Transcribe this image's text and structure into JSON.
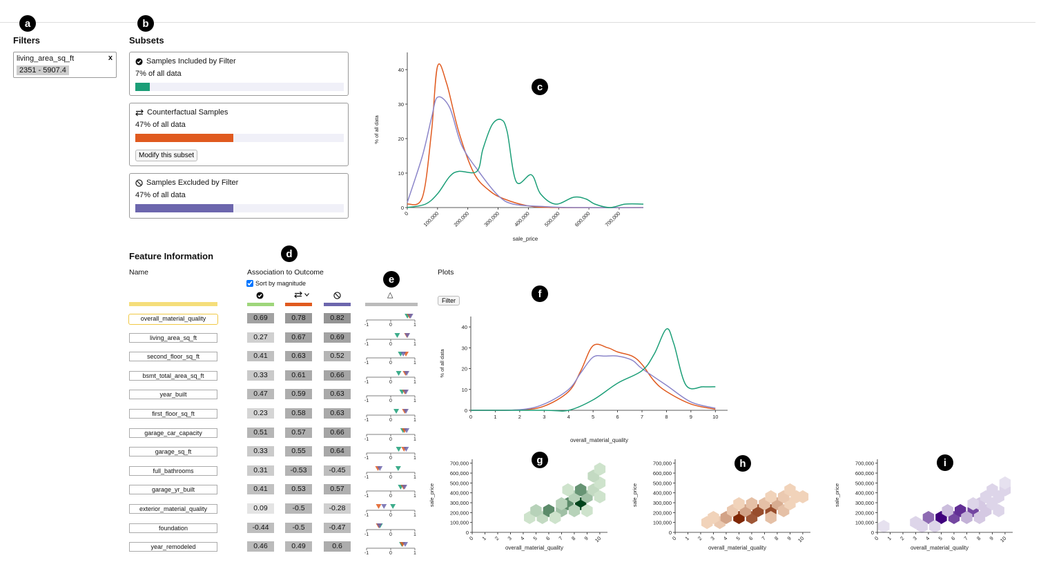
{
  "markers": {
    "a": "a",
    "b": "b",
    "c": "c",
    "d": "d",
    "e": "e",
    "f": "f",
    "g": "g",
    "h": "h",
    "i": "i"
  },
  "filters": {
    "heading": "Filters",
    "item": {
      "name": "living_area_sq_ft",
      "range": "2351 - 5907.4",
      "remove": "x"
    }
  },
  "subsets": {
    "heading": "Subsets",
    "included": {
      "title": "Samples Included by Filter",
      "pct_text": "7% of all data",
      "fraction": 0.07,
      "color": "#1b9e77"
    },
    "counterfactual": {
      "title": "Counterfactual Samples",
      "pct_text": "47% of all data",
      "fraction": 0.47,
      "color": "#e05a1f",
      "button": "Modify this subset"
    },
    "excluded": {
      "title": "Samples Excluded by Filter",
      "pct_text": "47% of all data",
      "fraction": 0.47,
      "color": "#6c66ad"
    }
  },
  "feature_info": {
    "heading": "Feature Information",
    "name_label": "Name",
    "assoc_label": "Association to Outcome",
    "sort_label": "Sort by magnitude",
    "sort_checked": true,
    "plots_label": "Plots",
    "filter_button": "Filter",
    "column_colors": [
      "#9ed67b",
      "#e05a1f",
      "#6c66ad",
      "#bbbbbb"
    ],
    "delta_symbol": "△",
    "features": [
      {
        "name": "overall_material_quality",
        "v": [
          "0.69",
          "0.78",
          "0.82"
        ]
      },
      {
        "name": "living_area_sq_ft",
        "v": [
          "0.27",
          "0.67",
          "0.69"
        ]
      },
      {
        "name": "second_floor_sq_ft",
        "v": [
          "0.41",
          "0.63",
          "0.52"
        ]
      },
      {
        "name": "bsmt_total_area_sq_ft",
        "v": [
          "0.33",
          "0.61",
          "0.66"
        ]
      },
      {
        "name": "year_built",
        "v": [
          "0.47",
          "0.59",
          "0.63"
        ]
      },
      {
        "name": "first_floor_sq_ft",
        "v": [
          "0.23",
          "0.58",
          "0.63"
        ]
      },
      {
        "name": "garage_car_capacity",
        "v": [
          "0.51",
          "0.57",
          "0.66"
        ]
      },
      {
        "name": "garage_sq_ft",
        "v": [
          "0.33",
          "0.55",
          "0.64"
        ]
      },
      {
        "name": "full_bathrooms",
        "v": [
          "0.31",
          "-0.53",
          "-0.45"
        ]
      },
      {
        "name": "garage_yr_built",
        "v": [
          "0.41",
          "0.53",
          "0.57"
        ]
      },
      {
        "name": "exterior_material_quality",
        "v": [
          "0.09",
          "-0.5",
          "-0.28"
        ]
      },
      {
        "name": "foundation",
        "v": [
          "-0.44",
          "-0.5",
          "-0.47"
        ]
      },
      {
        "name": "year_remodeled",
        "v": [
          "0.46",
          "0.49",
          "0.6"
        ]
      }
    ],
    "tick_labels": [
      "-1",
      "0",
      "1"
    ]
  },
  "chart_data": [
    {
      "type": "line",
      "xlabel": "sale_price",
      "ylabel": "% of all data",
      "xlim": [
        0,
        780000
      ],
      "ylim": [
        0,
        45
      ],
      "x_ticks": [
        "0",
        "100,000",
        "200,000",
        "300,000",
        "400,000",
        "500,000",
        "600,000",
        "700,000"
      ],
      "y_ticks": [
        "0",
        "10",
        "20",
        "30",
        "40"
      ],
      "series": [
        {
          "color": "#e05a1f",
          "points": [
            [
              0,
              1
            ],
            [
              50000,
              3
            ],
            [
              80000,
              22
            ],
            [
              100000,
              41
            ],
            [
              130000,
              36
            ],
            [
              170000,
              22
            ],
            [
              220000,
              10
            ],
            [
              270000,
              5
            ],
            [
              320000,
              2.5
            ],
            [
              400000,
              0.5
            ],
            [
              500000,
              0
            ],
            [
              780000,
              0
            ]
          ]
        },
        {
          "color": "#8b85c9",
          "points": [
            [
              0,
              1.5
            ],
            [
              50000,
              15
            ],
            [
              80000,
              26
            ],
            [
              100000,
              32
            ],
            [
              140000,
              29
            ],
            [
              180000,
              18
            ],
            [
              240000,
              10
            ],
            [
              300000,
              3.5
            ],
            [
              350000,
              1
            ],
            [
              450000,
              0.3
            ],
            [
              550000,
              0
            ],
            [
              780000,
              0
            ]
          ]
        },
        {
          "color": "#1b9e77",
          "points": [
            [
              0,
              0
            ],
            [
              60000,
              1
            ],
            [
              100000,
              4
            ],
            [
              140000,
              9
            ],
            [
              170000,
              10.5
            ],
            [
              230000,
              10.5
            ],
            [
              250000,
              17
            ],
            [
              280000,
              24
            ],
            [
              310000,
              25.5
            ],
            [
              330000,
              22
            ],
            [
              360000,
              7.5
            ],
            [
              410000,
              9.5
            ],
            [
              440000,
              4
            ],
            [
              490000,
              1
            ],
            [
              550000,
              3
            ],
            [
              590000,
              2.5
            ],
            [
              620000,
              1
            ],
            [
              670000,
              0
            ],
            [
              720000,
              1
            ],
            [
              780000,
              1
            ]
          ]
        }
      ]
    },
    {
      "type": "line",
      "xlabel": "overall_material_quality",
      "ylabel": "% of all data",
      "xlim": [
        0,
        10.5
      ],
      "ylim": [
        0,
        45
      ],
      "x_ticks": [
        "0",
        "1",
        "2",
        "3",
        "4",
        "5",
        "6",
        "7",
        "8",
        "9",
        "10"
      ],
      "y_ticks": [
        "0",
        "10",
        "20",
        "30",
        "40"
      ],
      "series": [
        {
          "color": "#e05a1f",
          "points": [
            [
              0,
              0
            ],
            [
              2,
              0.2
            ],
            [
              3,
              2
            ],
            [
              4,
              9
            ],
            [
              4.5,
              19
            ],
            [
              5,
              31
            ],
            [
              5.6,
              30
            ],
            [
              6,
              28
            ],
            [
              6.6,
              26
            ],
            [
              7,
              22
            ],
            [
              7.5,
              14
            ],
            [
              8,
              9
            ],
            [
              9,
              3
            ],
            [
              10,
              0.5
            ]
          ]
        },
        {
          "color": "#8b85c9",
          "points": [
            [
              0,
              0
            ],
            [
              2,
              0.3
            ],
            [
              3,
              3
            ],
            [
              4,
              10
            ],
            [
              4.5,
              18
            ],
            [
              5,
              25.5
            ],
            [
              5.5,
              26
            ],
            [
              6,
              26
            ],
            [
              6.6,
              24
            ],
            [
              7,
              20
            ],
            [
              8,
              12
            ],
            [
              9,
              4
            ],
            [
              10,
              1
            ]
          ]
        },
        {
          "color": "#1b9e77",
          "points": [
            [
              0,
              0
            ],
            [
              3,
              0
            ],
            [
              4,
              0
            ],
            [
              5,
              5
            ],
            [
              6,
              13
            ],
            [
              7,
              19
            ],
            [
              7.5,
              27
            ],
            [
              8,
              39
            ],
            [
              8.3,
              32
            ],
            [
              8.8,
              12
            ],
            [
              9.5,
              11.3
            ],
            [
              10,
              11.3
            ]
          ]
        }
      ]
    },
    {
      "type": "heatmap",
      "xlabel": "overall_material_quality",
      "ylabel": "sale_price",
      "color": "green",
      "x_ticks": [
        "0",
        "1",
        "2",
        "3",
        "4",
        "5",
        "6",
        "7",
        "8",
        "9",
        "10"
      ],
      "y_ticks": [
        "0",
        "100,000",
        "200,000",
        "300,000",
        "400,000",
        "500,000",
        "600,000",
        "700,000"
      ],
      "cells": [
        [
          4.5,
          150000,
          0.1
        ],
        [
          5.5,
          150000,
          0.15
        ],
        [
          6,
          220000,
          0.6
        ],
        [
          5,
          220000,
          0.2
        ],
        [
          7,
          220000,
          0.3
        ],
        [
          6.5,
          150000,
          0.1
        ],
        [
          7.5,
          290000,
          0.6
        ],
        [
          8.5,
          290000,
          1
        ],
        [
          8,
          220000,
          0.2
        ],
        [
          9,
          220000,
          0.1
        ],
        [
          9,
          360000,
          0.3
        ],
        [
          8,
          360000,
          0.2
        ],
        [
          7,
          290000,
          0.2
        ],
        [
          9.5,
          430000,
          0.15
        ],
        [
          8.5,
          430000,
          0.55
        ],
        [
          10,
          500000,
          0.1
        ],
        [
          9.5,
          570000,
          0.15
        ],
        [
          10,
          640000,
          0.1
        ],
        [
          10,
          360000,
          0.1
        ],
        [
          7.5,
          430000,
          0.1
        ]
      ]
    },
    {
      "type": "heatmap",
      "xlabel": "overall_material_quality",
      "ylabel": "sale_price",
      "color": "orange",
      "x_ticks": [
        "0",
        "1",
        "2",
        "3",
        "4",
        "5",
        "6",
        "7",
        "8",
        "9",
        "10"
      ],
      "y_ticks": [
        "0",
        "100,000",
        "200,000",
        "300,000",
        "400,000",
        "500,000",
        "600,000",
        "700,000"
      ],
      "cells": [
        [
          2.5,
          100000,
          0.1
        ],
        [
          3.5,
          100000,
          0.15
        ],
        [
          3,
          150000,
          0.1
        ],
        [
          4,
          150000,
          0.35
        ],
        [
          5,
          150000,
          1
        ],
        [
          6,
          150000,
          0.75
        ],
        [
          4.5,
          220000,
          0.15
        ],
        [
          5.5,
          220000,
          0.35
        ],
        [
          6.5,
          220000,
          0.8
        ],
        [
          7.5,
          220000,
          0.8
        ],
        [
          5,
          290000,
          0.1
        ],
        [
          6,
          290000,
          0.2
        ],
        [
          7,
          290000,
          0.2
        ],
        [
          8,
          290000,
          0.3
        ],
        [
          7.5,
          150000,
          0.2
        ],
        [
          8.5,
          220000,
          0.2
        ],
        [
          9,
          290000,
          0.1
        ],
        [
          8.5,
          360000,
          0.15
        ],
        [
          9.5,
          360000,
          0.1
        ],
        [
          7.5,
          360000,
          0.1
        ],
        [
          9,
          430000,
          0.1
        ],
        [
          10,
          360000,
          0.1
        ]
      ]
    },
    {
      "type": "heatmap",
      "xlabel": "overall_material_quality",
      "ylabel": "sale_price",
      "color": "purple",
      "x_ticks": [
        "0",
        "1",
        "2",
        "3",
        "4",
        "5",
        "6",
        "7",
        "8",
        "9",
        "10"
      ],
      "y_ticks": [
        "0",
        "100,000",
        "200,000",
        "300,000",
        "400,000",
        "500,000",
        "600,000",
        "700,000"
      ],
      "cells": [
        [
          0.5,
          60000,
          0.05
        ],
        [
          3,
          100000,
          0.1
        ],
        [
          4,
          150000,
          0.55
        ],
        [
          5,
          150000,
          1
        ],
        [
          6,
          150000,
          0.7
        ],
        [
          6.5,
          220000,
          0.8
        ],
        [
          7.5,
          220000,
          0.7
        ],
        [
          3.5,
          60000,
          0.1
        ],
        [
          4.5,
          60000,
          0.1
        ],
        [
          5.5,
          220000,
          0.2
        ],
        [
          7,
          150000,
          0.25
        ],
        [
          8,
          150000,
          0.15
        ],
        [
          8.5,
          220000,
          0.15
        ],
        [
          8,
          290000,
          0.15
        ],
        [
          9,
          290000,
          0.1
        ],
        [
          9.5,
          220000,
          0.1
        ],
        [
          8.5,
          360000,
          0.1
        ],
        [
          9.5,
          360000,
          0.1
        ],
        [
          9,
          430000,
          0.1
        ],
        [
          10,
          430000,
          0.1
        ],
        [
          10,
          500000,
          0.05
        ],
        [
          7.5,
          290000,
          0.1
        ]
      ]
    }
  ]
}
